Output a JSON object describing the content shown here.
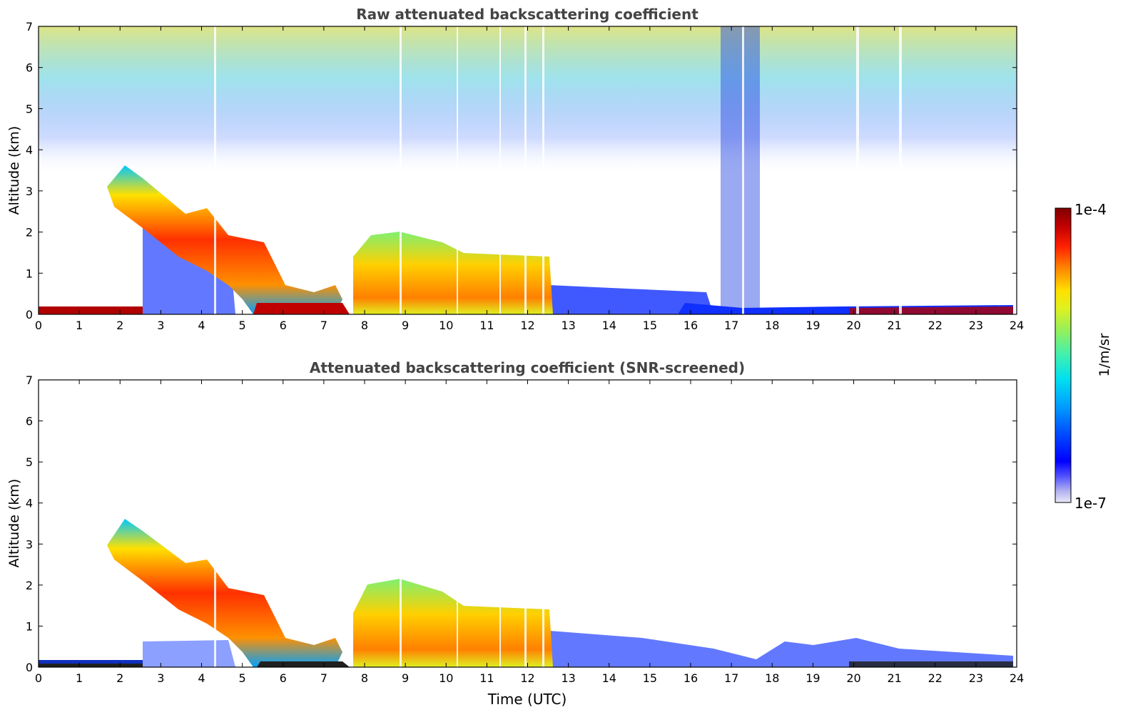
{
  "chart_data": [
    {
      "type": "heatmap",
      "title": "Raw attenuated backscattering coefficient",
      "xlabel": "",
      "ylabel": "Altitude (km)",
      "xlim": [
        0,
        24
      ],
      "ylim": [
        0,
        7
      ],
      "xticks": [
        "0",
        "1",
        "2",
        "3",
        "4",
        "5",
        "6",
        "7",
        "8",
        "9",
        "10",
        "11",
        "12",
        "13",
        "14",
        "15",
        "16",
        "17",
        "18",
        "19",
        "20",
        "21",
        "22",
        "23",
        "24"
      ],
      "yticks": [
        "0",
        "1",
        "2",
        "3",
        "4",
        "5",
        "6",
        "7"
      ],
      "features": [
        {
          "name": "smoke/aerosol layer",
          "start_time": 1.7,
          "end_time": 7.5,
          "top_km_start": 3.4,
          "top_km_end": 0.5,
          "description": "descending layer"
        },
        {
          "name": "boundary layer aerosol",
          "start_time": 7.6,
          "end_time": 12.6,
          "top_km": 1.8
        },
        {
          "name": "near-surface layer",
          "start_time": 0,
          "end_time": 24,
          "top_km": 0.25
        },
        {
          "name": "noisy upper background",
          "start_time": 0,
          "end_time": 24,
          "bottom_km": 4,
          "top_km": 7
        }
      ]
    },
    {
      "type": "heatmap",
      "title": "Attenuated backscattering coefficient (SNR-screened)",
      "xlabel": "Time (UTC)",
      "ylabel": "Altitude (km)",
      "xlim": [
        0,
        24
      ],
      "ylim": [
        0,
        7
      ],
      "xticks": [
        "0",
        "1",
        "2",
        "3",
        "4",
        "5",
        "6",
        "7",
        "8",
        "9",
        "10",
        "11",
        "12",
        "13",
        "14",
        "15",
        "16",
        "17",
        "18",
        "19",
        "20",
        "21",
        "22",
        "23",
        "24"
      ],
      "yticks": [
        "0",
        "1",
        "2",
        "3",
        "4",
        "5",
        "6",
        "7"
      ],
      "features": [
        {
          "name": "smoke/aerosol layer",
          "start_time": 1.7,
          "end_time": 7.5,
          "top_km_start": 3.5,
          "top_km_end": 0.5
        },
        {
          "name": "boundary layer aerosol",
          "start_time": 7.6,
          "end_time": 12.6,
          "top_km": 2.0
        },
        {
          "name": "residual layer",
          "start_time": 12.6,
          "end_time": 24,
          "top_km": 0.8
        }
      ]
    }
  ],
  "colorbar": {
    "max_label": "1e-4",
    "min_label": "1e-7",
    "unit_label": "1/m/sr",
    "colors": [
      "#e8e8f8",
      "#b0b0f0",
      "#6060f0",
      "#0000ff",
      "#0040ff",
      "#0090ff",
      "#00d0ff",
      "#30f0c0",
      "#80f070",
      "#d0f030",
      "#ffe000",
      "#ff9000",
      "#ff3000",
      "#d00000",
      "#800000"
    ]
  }
}
